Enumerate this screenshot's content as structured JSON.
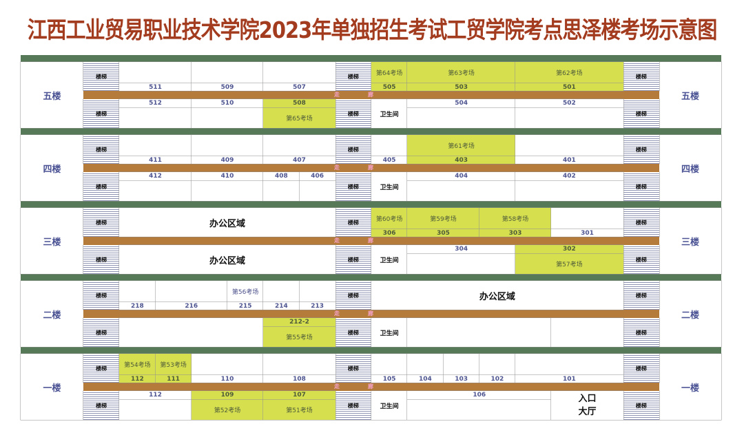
{
  "title": "江西工业贸易职业技术学院2023年单独招生考试工贸学院考点思泽楼考场示意图",
  "labels": {
    "stairs": "楼梯",
    "corridor_1": "走",
    "corridor_2": "廊"
  },
  "colors": {
    "title": "#a33b1f",
    "floor_divider": "#567a58",
    "corridor": "#b57b3b",
    "exam_room_highlight": "#d6e04e",
    "stairs_stripe": "#8d92b3"
  },
  "floors": [
    {
      "name": "五楼",
      "top": [
        {
          "no": "511"
        },
        {
          "no": "509"
        },
        {
          "no": "507"
        },
        {
          "no": "505",
          "room": "第64考场",
          "hl": true
        },
        {
          "no": "503",
          "room": "第63考场",
          "hl": true
        },
        {
          "no": "501",
          "room": "第62考场",
          "hl": true
        }
      ],
      "bottom": [
        {
          "no": "512"
        },
        {
          "no": "510"
        },
        {
          "no": "508",
          "room": "第65考场",
          "hl": true
        },
        {
          "text": "卫生间"
        },
        {
          "no": "504"
        },
        {
          "no": "502"
        }
      ]
    },
    {
      "name": "四楼",
      "top": [
        {
          "no": "411"
        },
        {
          "no": "409"
        },
        {
          "no": "407"
        },
        {
          "no": "405"
        },
        {
          "no": "403",
          "room": "第61考场",
          "hl": true
        },
        {
          "no": "401"
        }
      ],
      "bottom": [
        {
          "no": "412"
        },
        {
          "no": "410"
        },
        {
          "no": "408"
        },
        {
          "no": "406"
        },
        {
          "text": "卫生间"
        },
        {
          "no": "404"
        },
        {
          "no": "402"
        }
      ]
    },
    {
      "name": "三楼",
      "top": [
        {
          "text": "办公区域",
          "big": true
        },
        {
          "no": "306",
          "room": "第60考场",
          "hl": true
        },
        {
          "no": "305",
          "room": "第59考场",
          "hl": true
        },
        {
          "no": "303",
          "room": "第58考场",
          "hl": true
        },
        {
          "no": "301"
        }
      ],
      "bottom": [
        {
          "text": "办公区域",
          "big": true
        },
        {
          "text": "卫生间"
        },
        {
          "no": "304"
        },
        {
          "no": "302",
          "room": "第57考场",
          "hl": true
        }
      ]
    },
    {
      "name": "二楼",
      "top": [
        {
          "no": "218"
        },
        {
          "no": "216"
        },
        {
          "no": "215",
          "room": "第56考场"
        },
        {
          "no": "214"
        },
        {
          "no": "213"
        },
        {
          "text": "办公区域",
          "big": true
        }
      ],
      "bottom": [
        {
          "text": ""
        },
        {
          "no": "212-2",
          "room": "第55考场",
          "hl": true
        },
        {
          "text": "卫生间"
        },
        {
          "text": ""
        },
        {
          "text": ""
        }
      ]
    },
    {
      "name": "一楼",
      "top": [
        {
          "no": "112",
          "room": "第54考场",
          "hl": true
        },
        {
          "no": "111",
          "room": "第53考场",
          "hl": true
        },
        {
          "no": "110"
        },
        {
          "no": "108"
        },
        {
          "no": "105"
        },
        {
          "no": "104"
        },
        {
          "no": "103"
        },
        {
          "no": "102"
        },
        {
          "no": "101"
        }
      ],
      "bottom": [
        {
          "no": "112"
        },
        {
          "no": "109",
          "room": "第52考场",
          "hl": true
        },
        {
          "no": "107",
          "room": "第51考场",
          "hl": true
        },
        {
          "text": "卫生间"
        },
        {
          "no": "106"
        },
        {
          "text": "入口\n大厅",
          "entrance": true
        }
      ]
    }
  ]
}
